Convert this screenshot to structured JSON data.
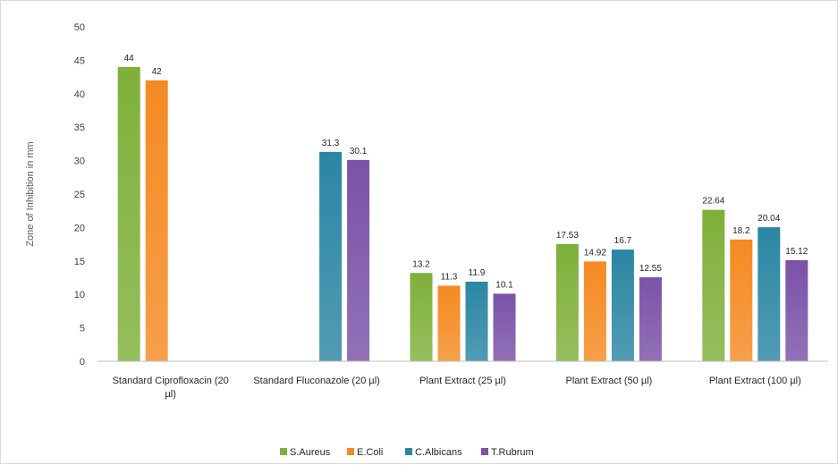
{
  "chart_data": {
    "type": "bar",
    "title": "",
    "xlabel": "",
    "ylabel": "Zone of Inhibition in mm",
    "ylim": [
      0,
      50
    ],
    "yticks": [
      0,
      5,
      10,
      15,
      20,
      25,
      30,
      35,
      40,
      45,
      50
    ],
    "grid": false,
    "legend_position": "bottom",
    "categories": [
      [
        "Standard Ciprofloxacin (20",
        "µl)"
      ],
      [
        "Standard Fluconazole (20 µl)"
      ],
      [
        "Plant Extract (25 µl)"
      ],
      [
        "Plant Extract (50 µl)"
      ],
      [
        "Plant Extract (100 µl)"
      ]
    ],
    "series": [
      {
        "name": "S.Aureus",
        "color": "#7fb03a",
        "values": [
          44,
          null,
          13.2,
          17.53,
          22.64
        ],
        "labels": [
          "44",
          "",
          "13.2",
          "17.53",
          "22.64"
        ]
      },
      {
        "name": "E.Coli",
        "color": "#f58a22",
        "values": [
          42,
          null,
          11.3,
          14.92,
          18.2
        ],
        "labels": [
          "42",
          "",
          "11.3",
          "14.92",
          "18.2"
        ]
      },
      {
        "name": "C.Albicans",
        "color": "#2b86a3",
        "values": [
          null,
          31.3,
          11.9,
          16.7,
          20.04
        ],
        "labels": [
          "",
          "31.3",
          "11.9",
          "16.7",
          "20.04"
        ]
      },
      {
        "name": "T.Rubrum",
        "color": "#7a52a8",
        "values": [
          null,
          30.1,
          10.1,
          12.55,
          15.12
        ],
        "labels": [
          "",
          "30.1",
          "10.1",
          "12.55",
          "15.12"
        ]
      }
    ]
  }
}
